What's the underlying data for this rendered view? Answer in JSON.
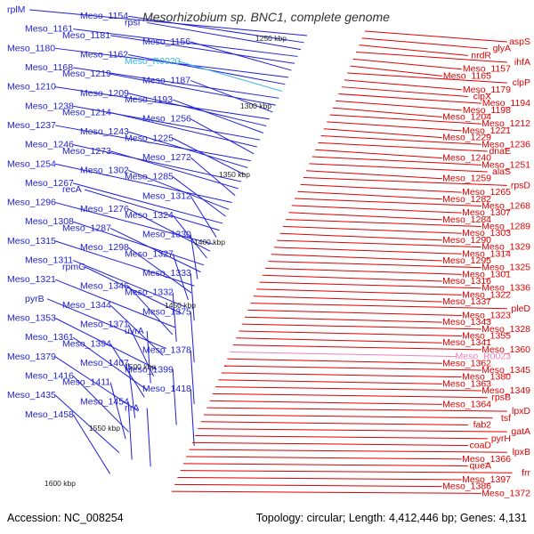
{
  "title": "Mesorhizobium sp. BNC1, complete genome",
  "footer": {
    "accession": "Accession: NC_008254",
    "topology": "Topology: circular; Length: 4,412,446 bp; Genes: 4,131"
  },
  "colors": {
    "forward_strand": "#1f1fd6",
    "reverse_strand": "#e00000",
    "rna_highlight_left": "#35b7e6",
    "rna_highlight_right": "#ef7fb7",
    "backbone": "#8a8a8a"
  },
  "kbp_ticks": [
    "1250 kbp",
    "1300 kbp",
    "1350 kbp",
    "1400 kbp",
    "1450 kbp",
    "1500 kbp",
    "1550 kbp",
    "1600 kbp"
  ],
  "left_labels": [
    {
      "text": "rplM",
      "color": "blue"
    },
    {
      "text": "Meso_1154",
      "color": "blue"
    },
    {
      "text": "rpsI",
      "color": "blue"
    },
    {
      "text": "Meso_1161",
      "color": "blue"
    },
    {
      "text": "Meso_1181",
      "color": "blue"
    },
    {
      "text": "Meso_1156",
      "color": "blue"
    },
    {
      "text": "Meso_1180",
      "color": "blue"
    },
    {
      "text": "Meso_1162",
      "color": "blue"
    },
    {
      "text": "Meso_R0020",
      "color": "cyan"
    },
    {
      "text": "Meso_1168",
      "color": "blue"
    },
    {
      "text": "Meso_1219",
      "color": "blue"
    },
    {
      "text": "Meso_1187",
      "color": "blue"
    },
    {
      "text": "Meso_1210",
      "color": "blue"
    },
    {
      "text": "Meso_1209",
      "color": "blue"
    },
    {
      "text": "Meso_1193",
      "color": "blue"
    },
    {
      "text": "Meso_1238",
      "color": "blue"
    },
    {
      "text": "Meso_1214",
      "color": "blue"
    },
    {
      "text": "Meso_1256",
      "color": "blue"
    },
    {
      "text": "Meso_1237",
      "color": "blue"
    },
    {
      "text": "Meso_1243",
      "color": "blue"
    },
    {
      "text": "Meso_1225",
      "color": "blue"
    },
    {
      "text": "Meso_1246",
      "color": "blue"
    },
    {
      "text": "Meso_1273",
      "color": "blue"
    },
    {
      "text": "Meso_1272",
      "color": "blue"
    },
    {
      "text": "Meso_1254",
      "color": "blue"
    },
    {
      "text": "Meso_1302",
      "color": "blue"
    },
    {
      "text": "Meso_1285",
      "color": "blue"
    },
    {
      "text": "Meso_1267",
      "color": "blue"
    },
    {
      "text": "recA",
      "color": "blue"
    },
    {
      "text": "Meso_1312",
      "color": "blue"
    },
    {
      "text": "Meso_1296",
      "color": "blue"
    },
    {
      "text": "Meso_1276",
      "color": "blue"
    },
    {
      "text": "Meso_1324",
      "color": "blue"
    },
    {
      "text": "Meso_1308",
      "color": "blue"
    },
    {
      "text": "Meso_1287",
      "color": "blue"
    },
    {
      "text": "Meso_1330",
      "color": "blue"
    },
    {
      "text": "Meso_1315",
      "color": "blue"
    },
    {
      "text": "Meso_1298",
      "color": "blue"
    },
    {
      "text": "Meso_1327",
      "color": "blue"
    },
    {
      "text": "Meso_1311",
      "color": "blue"
    },
    {
      "text": "rpmG",
      "color": "blue"
    },
    {
      "text": "Meso_1333",
      "color": "blue"
    },
    {
      "text": "Meso_1321",
      "color": "blue"
    },
    {
      "text": "Meso_1346",
      "color": "blue"
    },
    {
      "text": "Meso_1332",
      "color": "blue"
    },
    {
      "text": "pyrB",
      "color": "blue"
    },
    {
      "text": "Meso_1344",
      "color": "blue"
    },
    {
      "text": "Meso_1375",
      "color": "blue"
    },
    {
      "text": "Meso_1353",
      "color": "blue"
    },
    {
      "text": "Meso_1371",
      "color": "blue"
    },
    {
      "text": "uvrA",
      "color": "blue"
    },
    {
      "text": "Meso_1361",
      "color": "blue"
    },
    {
      "text": "Meso_1394",
      "color": "blue"
    },
    {
      "text": "Meso_1378",
      "color": "blue"
    },
    {
      "text": "Meso_1379",
      "color": "blue"
    },
    {
      "text": "Meso_1407",
      "color": "blue"
    },
    {
      "text": "Meso_1399",
      "color": "blue"
    },
    {
      "text": "Meso_1416",
      "color": "blue"
    },
    {
      "text": "Meso_1411",
      "color": "blue"
    },
    {
      "text": "Meso_1418",
      "color": "blue"
    },
    {
      "text": "Meso_1435",
      "color": "blue"
    },
    {
      "text": "Meso_1454",
      "color": "blue"
    },
    {
      "text": "rirA",
      "color": "blue"
    },
    {
      "text": "Meso_1458",
      "color": "blue"
    }
  ],
  "right_labels": [
    {
      "text": "aspS",
      "color": "red"
    },
    {
      "text": "glyA",
      "color": "red"
    },
    {
      "text": "nrdR",
      "color": "red"
    },
    {
      "text": "ihfA",
      "color": "red"
    },
    {
      "text": "Meso_1157",
      "color": "red"
    },
    {
      "text": "Meso_1165",
      "color": "red"
    },
    {
      "text": "clpP",
      "color": "red"
    },
    {
      "text": "Meso_1179",
      "color": "red"
    },
    {
      "text": "clpX",
      "color": "red"
    },
    {
      "text": "Meso_1194",
      "color": "red"
    },
    {
      "text": "Meso_1198",
      "color": "red"
    },
    {
      "text": "Meso_1204",
      "color": "red"
    },
    {
      "text": "Meso_1212",
      "color": "red"
    },
    {
      "text": "Meso_1221",
      "color": "red"
    },
    {
      "text": "Meso_1229",
      "color": "red"
    },
    {
      "text": "Meso_1236",
      "color": "red"
    },
    {
      "text": "dnaE",
      "color": "red"
    },
    {
      "text": "Meso_1240",
      "color": "red"
    },
    {
      "text": "Meso_1251",
      "color": "red"
    },
    {
      "text": "alaS",
      "color": "red"
    },
    {
      "text": "Meso_1259",
      "color": "red"
    },
    {
      "text": "rpsD",
      "color": "red"
    },
    {
      "text": "Meso_1265",
      "color": "red"
    },
    {
      "text": "Meso_1282",
      "color": "red"
    },
    {
      "text": "Meso_1268",
      "color": "red"
    },
    {
      "text": "Meso_1307",
      "color": "red"
    },
    {
      "text": "Meso_1284",
      "color": "red"
    },
    {
      "text": "Meso_1289",
      "color": "red"
    },
    {
      "text": "Meso_1303",
      "color": "red"
    },
    {
      "text": "Meso_1290",
      "color": "red"
    },
    {
      "text": "Meso_1329",
      "color": "red"
    },
    {
      "text": "Meso_1314",
      "color": "red"
    },
    {
      "text": "Meso_1295",
      "color": "red"
    },
    {
      "text": "Meso_1325",
      "color": "red"
    },
    {
      "text": "Meso_1301",
      "color": "red"
    },
    {
      "text": "Meso_1316",
      "color": "red"
    },
    {
      "text": "Meso_1336",
      "color": "red"
    },
    {
      "text": "Meso_1322",
      "color": "red"
    },
    {
      "text": "Meso_1337",
      "color": "red"
    },
    {
      "text": "pleD",
      "color": "red"
    },
    {
      "text": "Meso_1323",
      "color": "red"
    },
    {
      "text": "Meso_1343",
      "color": "red"
    },
    {
      "text": "Meso_1328",
      "color": "red"
    },
    {
      "text": "Meso_1355",
      "color": "red"
    },
    {
      "text": "Meso_1341",
      "color": "red"
    },
    {
      "text": "Meso_1360",
      "color": "red"
    },
    {
      "text": "Meso_R0023",
      "color": "pink"
    },
    {
      "text": "Meso_1362",
      "color": "red"
    },
    {
      "text": "Meso_1345",
      "color": "red"
    },
    {
      "text": "Meso_1380",
      "color": "red"
    },
    {
      "text": "Meso_1363",
      "color": "red"
    },
    {
      "text": "Meso_1349",
      "color": "red"
    },
    {
      "text": "rpsB",
      "color": "red"
    },
    {
      "text": "Meso_1364",
      "color": "red"
    },
    {
      "text": "lpxD",
      "color": "red"
    },
    {
      "text": "tsf",
      "color": "red"
    },
    {
      "text": "fab2",
      "color": "red"
    },
    {
      "text": "gatA",
      "color": "red"
    },
    {
      "text": "pyrH",
      "color": "red"
    },
    {
      "text": "coaD",
      "color": "red"
    },
    {
      "text": "lpxB",
      "color": "red"
    },
    {
      "text": "Meso_1366",
      "color": "red"
    },
    {
      "text": "queA",
      "color": "red"
    },
    {
      "text": "frr",
      "color": "red"
    },
    {
      "text": "Meso_1397",
      "color": "red"
    },
    {
      "text": "Meso_1386",
      "color": "red"
    },
    {
      "text": "Meso_1372",
      "color": "red"
    }
  ]
}
